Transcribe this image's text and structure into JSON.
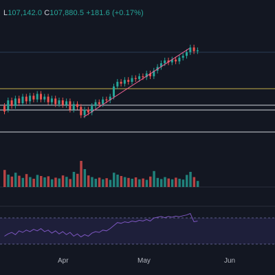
{
  "legend": {
    "low_key": "L",
    "low_value": "107,142.0",
    "close_key": "C",
    "close_value": "107,880.5",
    "change": "+181.6 (+0.17%)"
  },
  "x_axis": {
    "labels": [
      "Apr",
      "May",
      "Jun"
    ]
  },
  "colors": {
    "background": "#131722",
    "up": "#26a69a",
    "down": "#ef5350",
    "trendline": "#f06292",
    "level_yellow": "#c7b04a",
    "level_white": "#d1d4dc",
    "level_blue": "#2a3d57",
    "rsi_line": "#7e57c2",
    "rsi_band": "#1e1f3a"
  },
  "chart_data": {
    "type": "candlestick",
    "candles": [
      {
        "o": 0.34,
        "c": 0.28
      },
      {
        "o": 0.3,
        "c": 0.4
      },
      {
        "o": 0.4,
        "c": 0.34
      },
      {
        "o": 0.34,
        "c": 0.42
      },
      {
        "o": 0.42,
        "c": 0.37
      },
      {
        "o": 0.37,
        "c": 0.44
      },
      {
        "o": 0.44,
        "c": 0.39
      },
      {
        "o": 0.39,
        "c": 0.45
      },
      {
        "o": 0.45,
        "c": 0.41
      },
      {
        "o": 0.41,
        "c": 0.47
      },
      {
        "o": 0.47,
        "c": 0.41
      },
      {
        "o": 0.41,
        "c": 0.44
      },
      {
        "o": 0.44,
        "c": 0.38
      },
      {
        "o": 0.38,
        "c": 0.42
      },
      {
        "o": 0.42,
        "c": 0.36
      },
      {
        "o": 0.36,
        "c": 0.4
      },
      {
        "o": 0.4,
        "c": 0.35
      },
      {
        "o": 0.35,
        "c": 0.39
      },
      {
        "o": 0.39,
        "c": 0.3
      },
      {
        "o": 0.3,
        "c": 0.36
      },
      {
        "o": 0.36,
        "c": 0.33
      },
      {
        "o": 0.33,
        "c": 0.24
      },
      {
        "o": 0.24,
        "c": 0.3
      },
      {
        "o": 0.3,
        "c": 0.27
      },
      {
        "o": 0.27,
        "c": 0.34
      },
      {
        "o": 0.34,
        "c": 0.38
      },
      {
        "o": 0.38,
        "c": 0.36
      },
      {
        "o": 0.36,
        "c": 0.41
      },
      {
        "o": 0.41,
        "c": 0.4
      },
      {
        "o": 0.4,
        "c": 0.44
      },
      {
        "o": 0.44,
        "c": 0.55
      },
      {
        "o": 0.55,
        "c": 0.6
      },
      {
        "o": 0.6,
        "c": 0.58
      },
      {
        "o": 0.58,
        "c": 0.62
      },
      {
        "o": 0.62,
        "c": 0.6
      },
      {
        "o": 0.6,
        "c": 0.64
      },
      {
        "o": 0.64,
        "c": 0.63
      },
      {
        "o": 0.63,
        "c": 0.66
      },
      {
        "o": 0.66,
        "c": 0.65
      },
      {
        "o": 0.65,
        "c": 0.69
      },
      {
        "o": 0.69,
        "c": 0.66
      },
      {
        "o": 0.66,
        "c": 0.72
      },
      {
        "o": 0.72,
        "c": 0.76
      },
      {
        "o": 0.76,
        "c": 0.8
      },
      {
        "o": 0.8,
        "c": 0.83
      },
      {
        "o": 0.83,
        "c": 0.81
      },
      {
        "o": 0.81,
        "c": 0.84
      },
      {
        "o": 0.84,
        "c": 0.82
      },
      {
        "o": 0.82,
        "c": 0.86
      },
      {
        "o": 0.86,
        "c": 0.88
      },
      {
        "o": 0.88,
        "c": 0.92
      },
      {
        "o": 0.92,
        "c": 0.97
      },
      {
        "o": 0.97,
        "c": 0.93
      },
      {
        "o": 0.93,
        "c": 0.94
      }
    ],
    "volume": [
      0.62,
      0.45,
      0.38,
      0.52,
      0.41,
      0.33,
      0.47,
      0.36,
      0.3,
      0.44,
      0.4,
      0.35,
      0.39,
      0.28,
      0.34,
      0.31,
      0.42,
      0.37,
      0.29,
      0.55,
      0.48,
      0.95,
      0.65,
      0.42,
      0.36,
      0.3,
      0.34,
      0.28,
      0.32,
      0.26,
      0.52,
      0.45,
      0.4,
      0.36,
      0.33,
      0.3,
      0.35,
      0.28,
      0.31,
      0.26,
      0.38,
      0.58,
      0.33,
      0.29,
      0.36,
      0.31,
      0.28,
      0.34,
      0.3,
      0.27,
      0.44,
      0.55,
      0.36,
      0.22
    ],
    "rsi": [
      0.3,
      0.36,
      0.4,
      0.34,
      0.44,
      0.4,
      0.46,
      0.42,
      0.48,
      0.44,
      0.5,
      0.42,
      0.46,
      0.38,
      0.44,
      0.36,
      0.42,
      0.34,
      0.4,
      0.3,
      0.36,
      0.28,
      0.34,
      0.3,
      0.38,
      0.42,
      0.4,
      0.46,
      0.44,
      0.5,
      0.58,
      0.66,
      0.64,
      0.68,
      0.66,
      0.7,
      0.68,
      0.72,
      0.7,
      0.74,
      0.7,
      0.78,
      0.8,
      0.82,
      0.79,
      0.82,
      0.8,
      0.83,
      0.81,
      0.84,
      0.86,
      0.9,
      0.68,
      0.7
    ]
  }
}
